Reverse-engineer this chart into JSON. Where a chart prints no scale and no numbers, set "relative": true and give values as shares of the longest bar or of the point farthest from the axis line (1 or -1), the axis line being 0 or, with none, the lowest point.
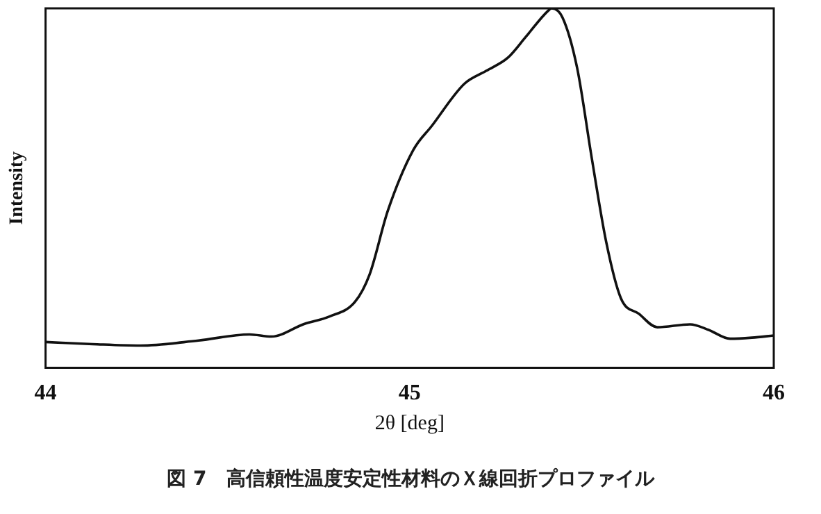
{
  "chart_data": {
    "type": "line",
    "title": "図 7　高信頼性温度安定性材料のＸ線回折プロファイル",
    "xlabel": "2θ [deg]",
    "ylabel": "Intensity",
    "relative": true,
    "xlim": [
      44,
      46
    ],
    "xticks": [
      44,
      45,
      46
    ],
    "grid": false,
    "legend": false,
    "marker": "none",
    "line_style": "solid",
    "series": [
      {
        "color": "#111111",
        "x": [
          44.0,
          44.13,
          44.26,
          44.42,
          44.56,
          44.62,
          44.71,
          44.78,
          44.85,
          44.89,
          44.94,
          45.01,
          45.06,
          45.15,
          45.21,
          45.27,
          45.32,
          45.38,
          45.39,
          45.42,
          45.46,
          45.5,
          45.54,
          45.58,
          45.63,
          45.68,
          45.77,
          45.82,
          45.88,
          45.94,
          46.0
        ],
        "values": [
          0.072,
          0.066,
          0.062,
          0.076,
          0.093,
          0.087,
          0.122,
          0.143,
          0.184,
          0.26,
          0.437,
          0.606,
          0.672,
          0.79,
          0.826,
          0.863,
          0.922,
          0.993,
          1,
          0.974,
          0.834,
          0.584,
          0.349,
          0.194,
          0.15,
          0.113,
          0.121,
          0.106,
          0.081,
          0.084,
          0.09
        ]
      }
    ]
  }
}
